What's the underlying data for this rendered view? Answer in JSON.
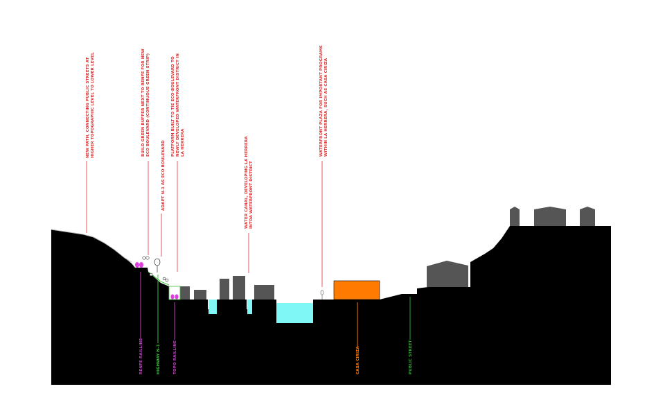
{
  "colors": {
    "ground": "#000000",
    "building": "#555555",
    "water": "#7ff7f7",
    "highlight": "#ff7a00",
    "annotation_red": "#e03030",
    "rail_magenta": "#c040c0",
    "road_green": "#3cc23c",
    "street_green": "#2ea82e",
    "train": "#e040e0",
    "tree": "#ffffff"
  },
  "annotations": {
    "new_path": [
      "NEW PATH, CONNECTING PUBLIC STREETS AT",
      "HIGHER TOPOGRAPHIC LEVEL TO LOWER LEVEL"
    ],
    "green_buffer": [
      "BUILD GREEN BUFFER NEXT TO RENFE FOR NEW",
      "ECO BOULEVARD (CONTINUOUS GREEN STRIP)"
    ],
    "adapt_n1": [
      "ADAPT N-1 AS ECO BOULEVARD"
    ],
    "platform": [
      "PLATFORM BUILT TO TIE ECO-BOULEVARD TO",
      "NEWLY DEVELOPED WATERFRONT DISTRICT IN",
      "LA HERRERA"
    ],
    "water_canal": [
      "WATER CANAL, DEVELOPING LA HERRERA",
      "INTOA WATERFRONT DISTRICT"
    ],
    "waterfront_plaza": [
      "WATERFRONT PLAZA FOR IMPORTANT PROGRAMS",
      "WITHIN LA HERRERA, SUCH AS CASA CIRIZA"
    ]
  },
  "infrastructure_labels": {
    "renfe": "RENFE RAILLINE",
    "highway": "HIGHWAY N-1",
    "topo": "TOPO RAILLINE",
    "casa_ciriza": "CASA CIRIZA",
    "public_street": "PUBLIC STREET"
  }
}
